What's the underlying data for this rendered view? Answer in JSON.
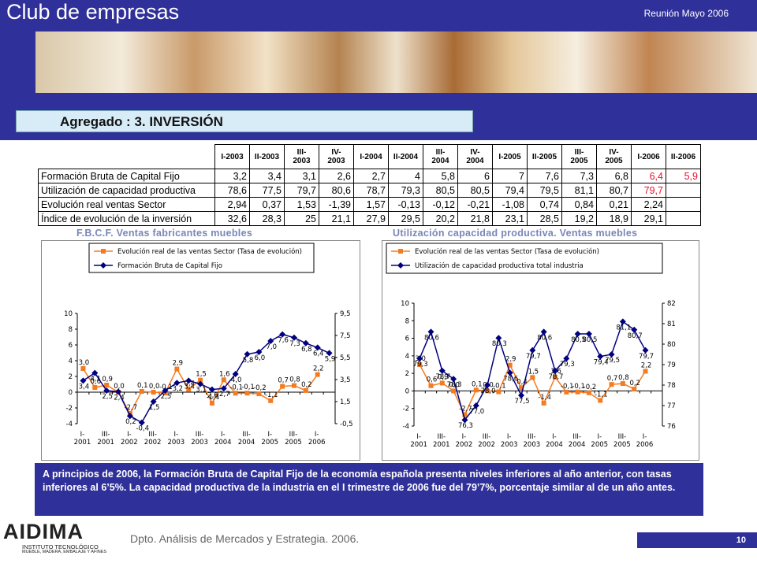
{
  "header": {
    "title": "Club de empresas",
    "meeting": "Reunión Mayo 2006",
    "section": "Agregado : 3. INVERSIÓN"
  },
  "table": {
    "columns": [
      "I-2003",
      "II-2003",
      "III-\n2003",
      "IV-\n2003",
      "I-2004",
      "II-2004",
      "III-\n2004",
      "IV-\n2004",
      "I-2005",
      "II-2005",
      "III-\n2005",
      "IV-\n2005",
      "I-2006",
      "II-2006"
    ],
    "highlight_color": "#e8112d",
    "rows": [
      {
        "label": "Formación Bruta de Capital Fijo",
        "cells": [
          "3,2",
          "3,4",
          "3,1",
          "2,6",
          "2,7",
          "4",
          "5,8",
          "6",
          "7",
          "7,6",
          "7,3",
          "6,8",
          "6,4",
          "5,9"
        ],
        "highlighted": [
          12,
          13
        ]
      },
      {
        "label": "Utilización de capacidad productiva",
        "cells": [
          "78,6",
          "77,5",
          "79,7",
          "80,6",
          "78,7",
          "79,3",
          "80,5",
          "80,5",
          "79,4",
          "79,5",
          "81,1",
          "80,7",
          "79,7"
        ],
        "highlighted": [
          12
        ]
      },
      {
        "label": "Evolución real ventas Sector",
        "cells": [
          "2,94",
          "0,37",
          "1,53",
          "-1,39",
          "1,57",
          "-0,13",
          "-0,12",
          "-0,21",
          "-1,08",
          "0,74",
          "0,84",
          "0,21",
          "2,24"
        ],
        "highlighted": []
      },
      {
        "label": "Índice de evolución de la inversión",
        "cells": [
          "32,6",
          "28,3",
          "25",
          "21,1",
          "27,9",
          "29,5",
          "20,2",
          "21,8",
          "23,1",
          "28,5",
          "19,2",
          "18,9",
          "29,1"
        ],
        "highlighted": []
      }
    ]
  },
  "chart_data": [
    {
      "type": "line",
      "title": "F.B.C.F. Ventas fabricantes muebles",
      "legend": "top",
      "categories": [
        "I-\n2001",
        null,
        "III-\n2001",
        null,
        "I-\n2002",
        null,
        "III-\n2002",
        null,
        "I-\n2003",
        null,
        "III-\n2003",
        null,
        "I-\n2004",
        null,
        "III-\n2004",
        null,
        "I-\n2005",
        null,
        "III-\n2005",
        null,
        "I-\n2006",
        null
      ],
      "ylim": [
        -4,
        10
      ],
      "yticks": [
        -4,
        -2,
        0,
        2,
        4,
        6,
        8,
        10
      ],
      "y2lim": [
        -0.5,
        9.5
      ],
      "y2ticks": [
        {
          "value": -0.5,
          "label": "-0,5"
        },
        {
          "value": 1.5,
          "label": "1,5"
        },
        {
          "value": 3.5,
          "label": "3,5"
        },
        {
          "value": 5.5,
          "label": "5,5"
        },
        {
          "value": 7.5,
          "label": "7,5"
        },
        {
          "value": 9.5,
          "label": "9,5"
        }
      ],
      "series": [
        {
          "name": "Evolución real de las ventas Sector (Tasa de evolución)",
          "color": "#f47b20",
          "marker": "square",
          "values": [
            3.0,
            0.6,
            0.9,
            0.0,
            -2.7,
            0.1,
            0.0,
            -0.1,
            2.94,
            0.37,
            1.53,
            -1.39,
            1.57,
            -0.13,
            -0.12,
            -0.21,
            -1.08,
            0.74,
            0.84,
            0.21,
            2.24,
            null
          ],
          "value_labels": [
            "3,0",
            "0,6",
            "0,9",
            "0,0",
            "-2,7",
            "0,1",
            "0,0",
            "-0,1",
            "2,9",
            "0,4",
            "1,5",
            "-1,4",
            "1,6",
            "-0,1",
            "-0,1",
            "-0,2",
            "-1,1",
            "0,7",
            "0,8",
            "0,2",
            "2,2",
            null
          ]
        },
        {
          "name": "Formación Bruta de Capital Fijo",
          "color": "#000080",
          "marker": "diamond",
          "axis": "y2",
          "values": [
            3.4,
            4.1,
            2.5,
            2.4,
            0.2,
            -0.4,
            1.5,
            2.5,
            3.2,
            3.4,
            3.1,
            2.6,
            2.7,
            4.0,
            5.8,
            6.0,
            7.0,
            7.6,
            7.3,
            6.8,
            6.4,
            5.9
          ],
          "value_labels": [
            "3,4",
            "4,1",
            "2,5",
            "2,4",
            "0,2",
            "-0,4",
            "1,5",
            "2,5",
            "3,2",
            "3,4",
            "3,1",
            "2,6",
            "2,7",
            "4,0",
            "5,8",
            "6,0",
            "7,0",
            "7,6",
            "7,3",
            "6,8",
            "6,4",
            "5,9"
          ]
        }
      ]
    },
    {
      "type": "line",
      "title": "Utilización capacidad productiva. Ventas muebles",
      "legend": "top",
      "categories": [
        "I-\n2001",
        null,
        "III-\n2001",
        null,
        "I-\n2002",
        null,
        "III-\n2002",
        null,
        "I-\n2003",
        null,
        "III-\n2003",
        null,
        "I-\n2004",
        null,
        "III-\n2004",
        null,
        "I-\n2005",
        null,
        "III-\n2005",
        null,
        "I-\n2006",
        null
      ],
      "ylim": [
        -4,
        10
      ],
      "yticks": [
        -4,
        -2,
        0,
        2,
        4,
        6,
        8,
        10
      ],
      "y2lim": [
        76,
        82
      ],
      "y2ticks": [
        76,
        77,
        78,
        79,
        80,
        81,
        82
      ],
      "series": [
        {
          "name": "Evolución real de las ventas Sector (Tasa de evolución)",
          "color": "#f47b20",
          "marker": "square",
          "values": [
            3.0,
            0.6,
            0.9,
            0.0,
            -2.7,
            0.1,
            0.0,
            -0.1,
            2.94,
            0.37,
            1.53,
            -1.39,
            1.57,
            -0.13,
            -0.12,
            -0.21,
            -1.08,
            0.74,
            0.84,
            0.21,
            2.24,
            null
          ],
          "value_labels": [
            "3,0",
            "0,6",
            "0,9",
            "0,0",
            "-2,7",
            "0,1",
            "0,0",
            "-0,1",
            "2,9",
            "0,4",
            "1,5",
            "-1,4",
            "1,6",
            "-0,1",
            "-0,1",
            "-0,2",
            "-1,1",
            "0,7",
            "0,8",
            "0,2",
            "2,2",
            null
          ]
        },
        {
          "name": "Utilización de capacidad productiva total industria",
          "color": "#000080",
          "marker": "diamond",
          "axis": "y2",
          "values": [
            79.3,
            80.6,
            78.7,
            78.3,
            76.3,
            77.0,
            78.0,
            80.3,
            78.6,
            77.5,
            79.7,
            80.6,
            78.7,
            79.3,
            80.5,
            80.5,
            79.4,
            79.5,
            81.1,
            80.7,
            79.7,
            null
          ],
          "value_labels": [
            "79,3",
            "80,6",
            "78,7",
            "78,3",
            "76,3",
            "77,0",
            "78,0",
            "80,3",
            "78,6",
            "77,5",
            "79,7",
            "80,6",
            "78,7",
            "79,3",
            "80,5",
            "80,5",
            "79,4",
            "79,5",
            "81,1",
            "80,7",
            "79,7",
            null
          ]
        }
      ]
    }
  ],
  "summary": "A principios de 2006, la Formación Bruta de Capital Fijo de la economía española presenta niveles inferiores al año anterior, con tasas inferiores al 6’5%.  La capacidad productiva de la industria en el I trimestre de 2006 fue del 79’7%, porcentaje similar al de un año antes.",
  "footer": {
    "logo": "AIDIMA",
    "logo_sub": "INSTITUTO TECNOLÓGICO",
    "logo_tag": "MUEBLE, MADERA, EMBALAJE Y AFINES",
    "department": "Dpto. Análisis de Mercados y Estrategia. 2006.",
    "page": "10"
  }
}
